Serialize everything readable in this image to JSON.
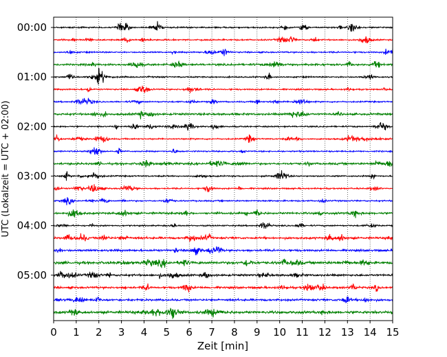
{
  "chart_data": {
    "type": "line",
    "title": "",
    "xlabel": "Zeit  [min]",
    "ylabel": "UTC (Lokalzeit = UTC + 02:00)",
    "xlim": [
      0,
      15
    ],
    "x_ticks": [
      0,
      1,
      2,
      3,
      4,
      5,
      6,
      7,
      8,
      9,
      10,
      11,
      12,
      13,
      14,
      15
    ],
    "y_tick_labels": [
      "00:00",
      "01:00",
      "02:00",
      "03:00",
      "04:00",
      "05:00"
    ],
    "row_interval_minutes": 15,
    "row_start_times": [
      "00:00",
      "00:15",
      "00:30",
      "00:45",
      "01:00",
      "01:15",
      "01:30",
      "01:45",
      "02:00",
      "02:15",
      "02:30",
      "02:45",
      "03:00",
      "03:15",
      "03:30",
      "03:45",
      "04:00",
      "04:15",
      "04:30",
      "04:45",
      "05:00",
      "05:15",
      "05:30",
      "05:45"
    ],
    "trace_color_cycle": [
      "#000000",
      "#ff0000",
      "#0000ff",
      "#008000"
    ],
    "vertical_grid": "dotted",
    "series_note": "Seismogram helicorder: continuous waveform traces, one per 15-minute row"
  }
}
